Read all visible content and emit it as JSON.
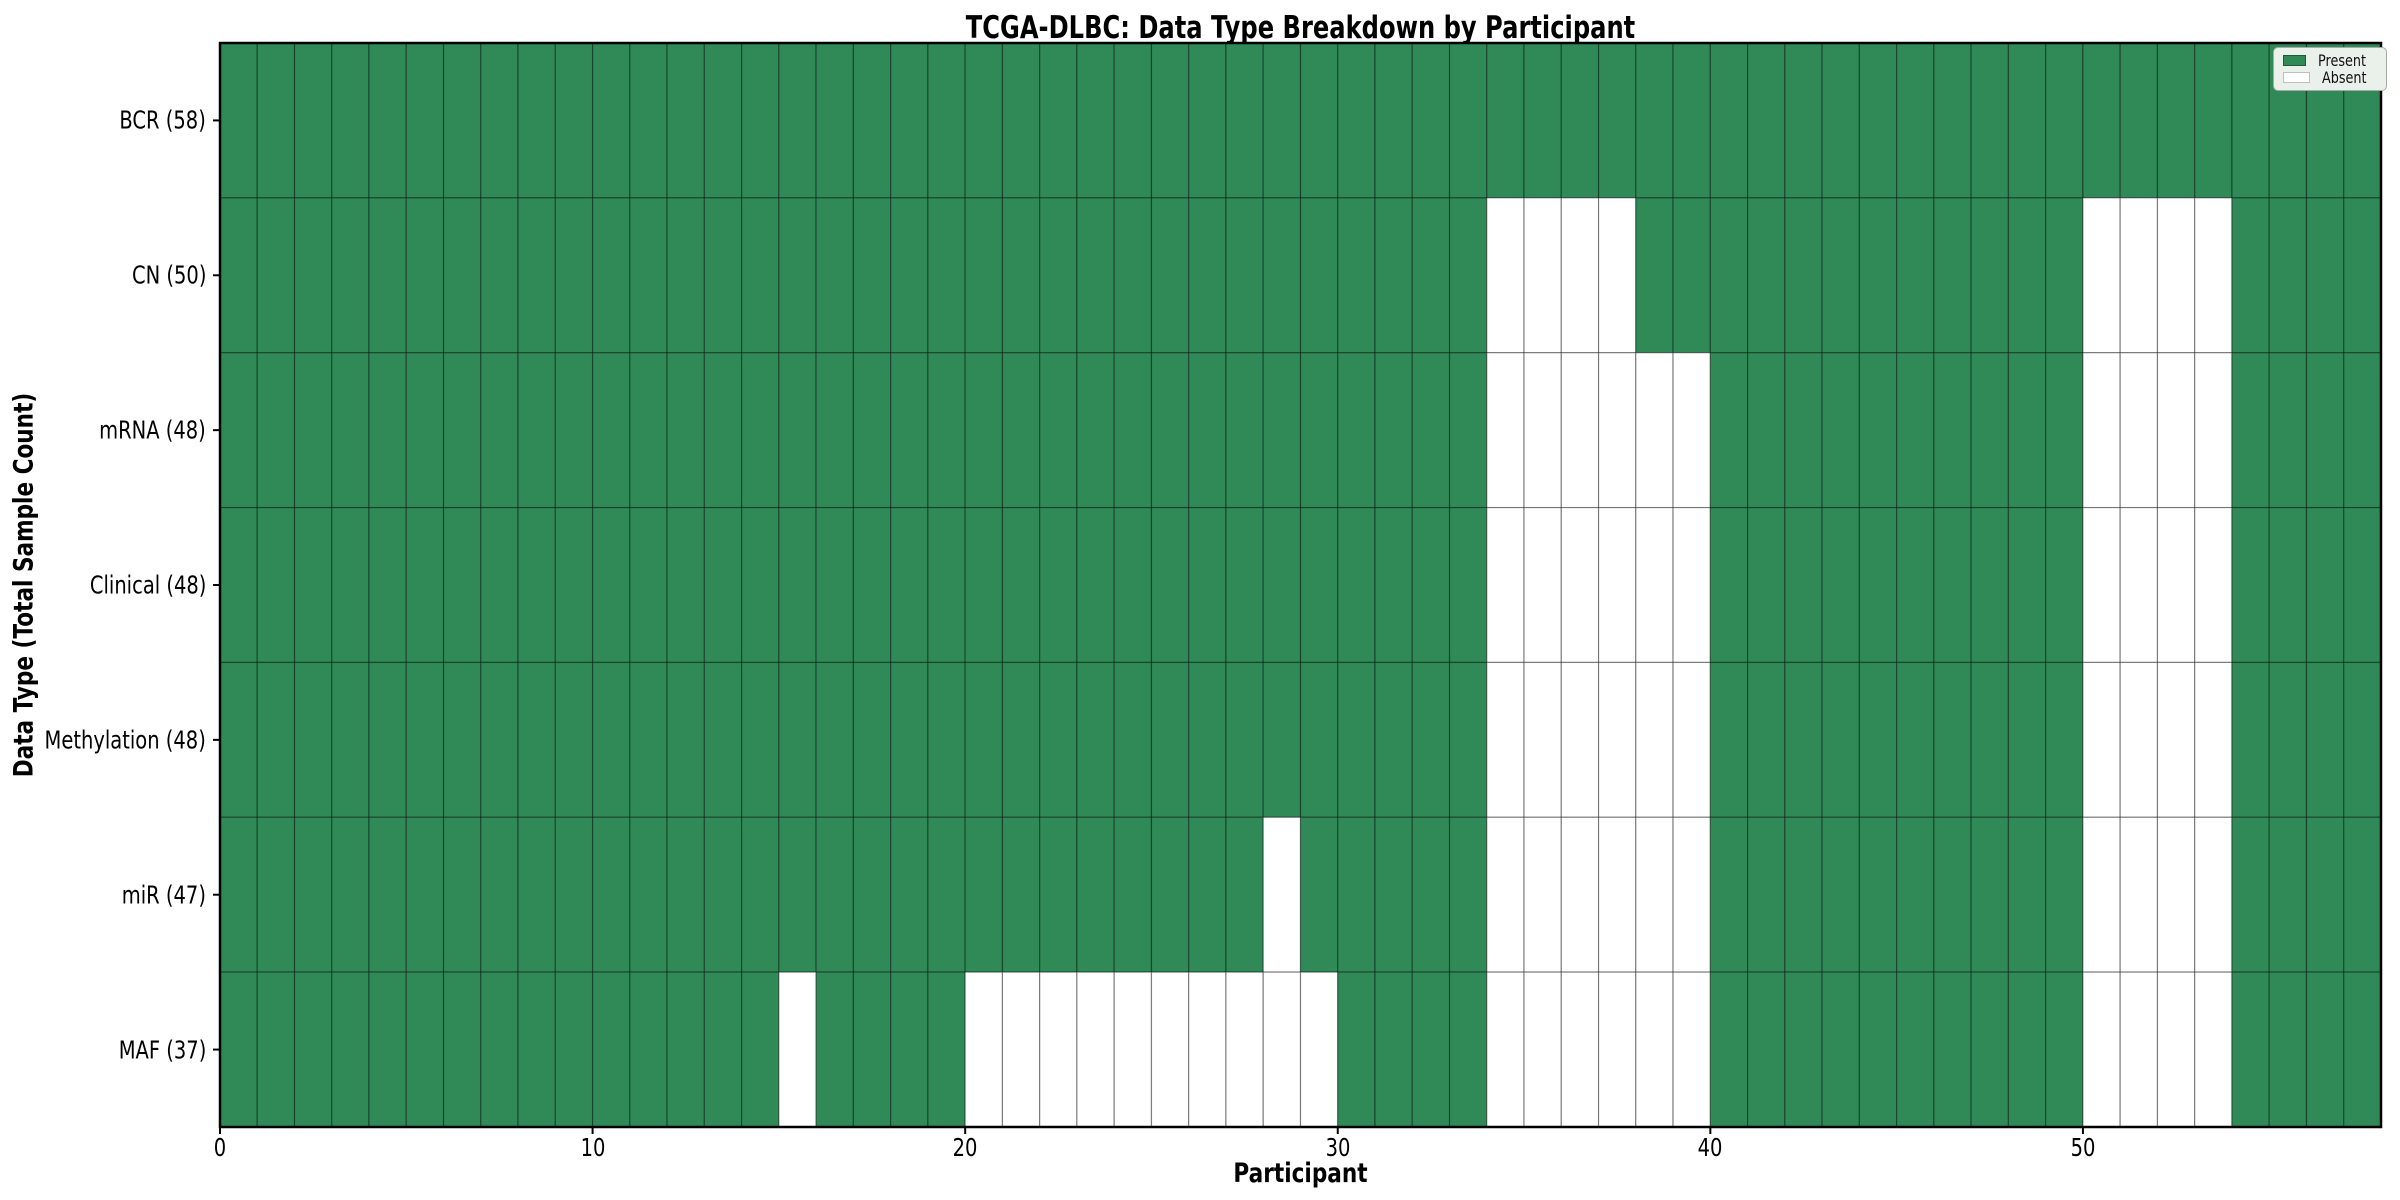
{
  "chart_data": {
    "type": "heatmap",
    "title": "TCGA-DLBC: Data Type Breakdown by Participant",
    "xlabel": "Participant",
    "ylabel": "Data Type (Total Sample Count)",
    "x_ticks": [
      0,
      10,
      20,
      30,
      40,
      50
    ],
    "x_range": [
      0,
      58
    ],
    "n_participants": 58,
    "cell_states": [
      "Present",
      "Absent"
    ],
    "rows": [
      {
        "label": "BCR (58)",
        "data_type": "BCR",
        "total_sample_count": 58,
        "absent_participants": []
      },
      {
        "label": "CN (50)",
        "data_type": "CN",
        "total_sample_count": 50,
        "absent_participants": [
          34,
          35,
          36,
          37,
          50,
          51,
          52,
          53
        ]
      },
      {
        "label": "mRNA (48)",
        "data_type": "mRNA",
        "total_sample_count": 48,
        "absent_participants": [
          34,
          35,
          36,
          37,
          38,
          39,
          50,
          51,
          52,
          53
        ]
      },
      {
        "label": "Clinical (48)",
        "data_type": "Clinical",
        "total_sample_count": 48,
        "absent_participants": [
          34,
          35,
          36,
          37,
          38,
          39,
          50,
          51,
          52,
          53
        ]
      },
      {
        "label": "Methylation (48)",
        "data_type": "Methylation",
        "total_sample_count": 48,
        "absent_participants": [
          34,
          35,
          36,
          37,
          38,
          39,
          50,
          51,
          52,
          53
        ]
      },
      {
        "label": "miR (47)",
        "data_type": "miR",
        "total_sample_count": 47,
        "absent_participants": [
          28,
          34,
          35,
          36,
          37,
          38,
          39,
          50,
          51,
          52,
          53
        ]
      },
      {
        "label": "MAF (37)",
        "data_type": "MAF",
        "total_sample_count": 37,
        "absent_participants": [
          15,
          20,
          21,
          22,
          23,
          24,
          25,
          26,
          27,
          28,
          29,
          34,
          35,
          36,
          37,
          38,
          39,
          50,
          51,
          52,
          53
        ]
      }
    ],
    "legend": {
      "position": "upper right",
      "entries": [
        {
          "label": "Present",
          "color": "#2f8a57"
        },
        {
          "label": "Absent",
          "color": "#ffffff"
        }
      ]
    },
    "colors": {
      "present": "#2f8a57",
      "absent": "#ffffff",
      "cell_edge": "rgba(0,0,0,0.4)",
      "axes_border": "#000000",
      "background": "#ffffff"
    },
    "grid": true
  }
}
